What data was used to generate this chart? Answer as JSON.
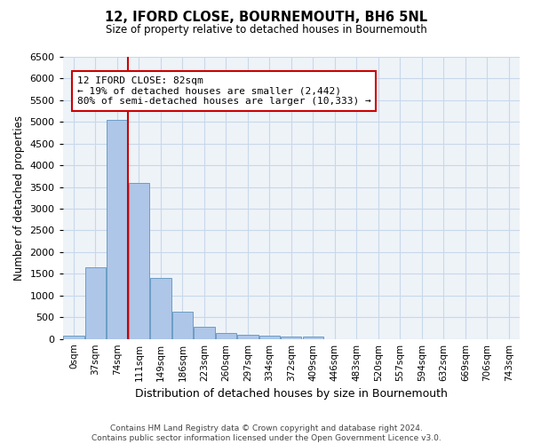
{
  "title": "12, IFORD CLOSE, BOURNEMOUTH, BH6 5NL",
  "subtitle": "Size of property relative to detached houses in Bournemouth",
  "xlabel": "Distribution of detached houses by size in Bournemouth",
  "ylabel": "Number of detached properties",
  "footer_line1": "Contains HM Land Registry data © Crown copyright and database right 2024.",
  "footer_line2": "Contains public sector information licensed under the Open Government Licence v3.0.",
  "bin_labels": [
    "0sqm",
    "37sqm",
    "74sqm",
    "111sqm",
    "149sqm",
    "186sqm",
    "223sqm",
    "260sqm",
    "297sqm",
    "334sqm",
    "372sqm",
    "409sqm",
    "446sqm",
    "483sqm",
    "520sqm",
    "557sqm",
    "594sqm",
    "632sqm",
    "669sqm",
    "706sqm",
    "743sqm"
  ],
  "bar_heights": [
    75,
    1650,
    5050,
    3600,
    1400,
    625,
    290,
    130,
    90,
    70,
    50,
    55,
    0,
    0,
    0,
    0,
    0,
    0,
    0,
    0,
    0
  ],
  "bar_color": "#aec6e8",
  "bar_edge_color": "#6a9ec5",
  "grid_color": "#c8d8ea",
  "background_color": "#eef3f8",
  "vline_x_idx": 2,
  "vline_color": "#cc0000",
  "annotation_line1": "12 IFORD CLOSE: 82sqm",
  "annotation_line2": "← 19% of detached houses are smaller (2,442)",
  "annotation_line3": "80% of semi-detached houses are larger (10,333) →",
  "annotation_box_color": "#ffffff",
  "annotation_box_edge": "#cc0000",
  "ylim": [
    0,
    6500
  ],
  "yticks": [
    0,
    500,
    1000,
    1500,
    2000,
    2500,
    3000,
    3500,
    4000,
    4500,
    5000,
    5500,
    6000,
    6500
  ]
}
